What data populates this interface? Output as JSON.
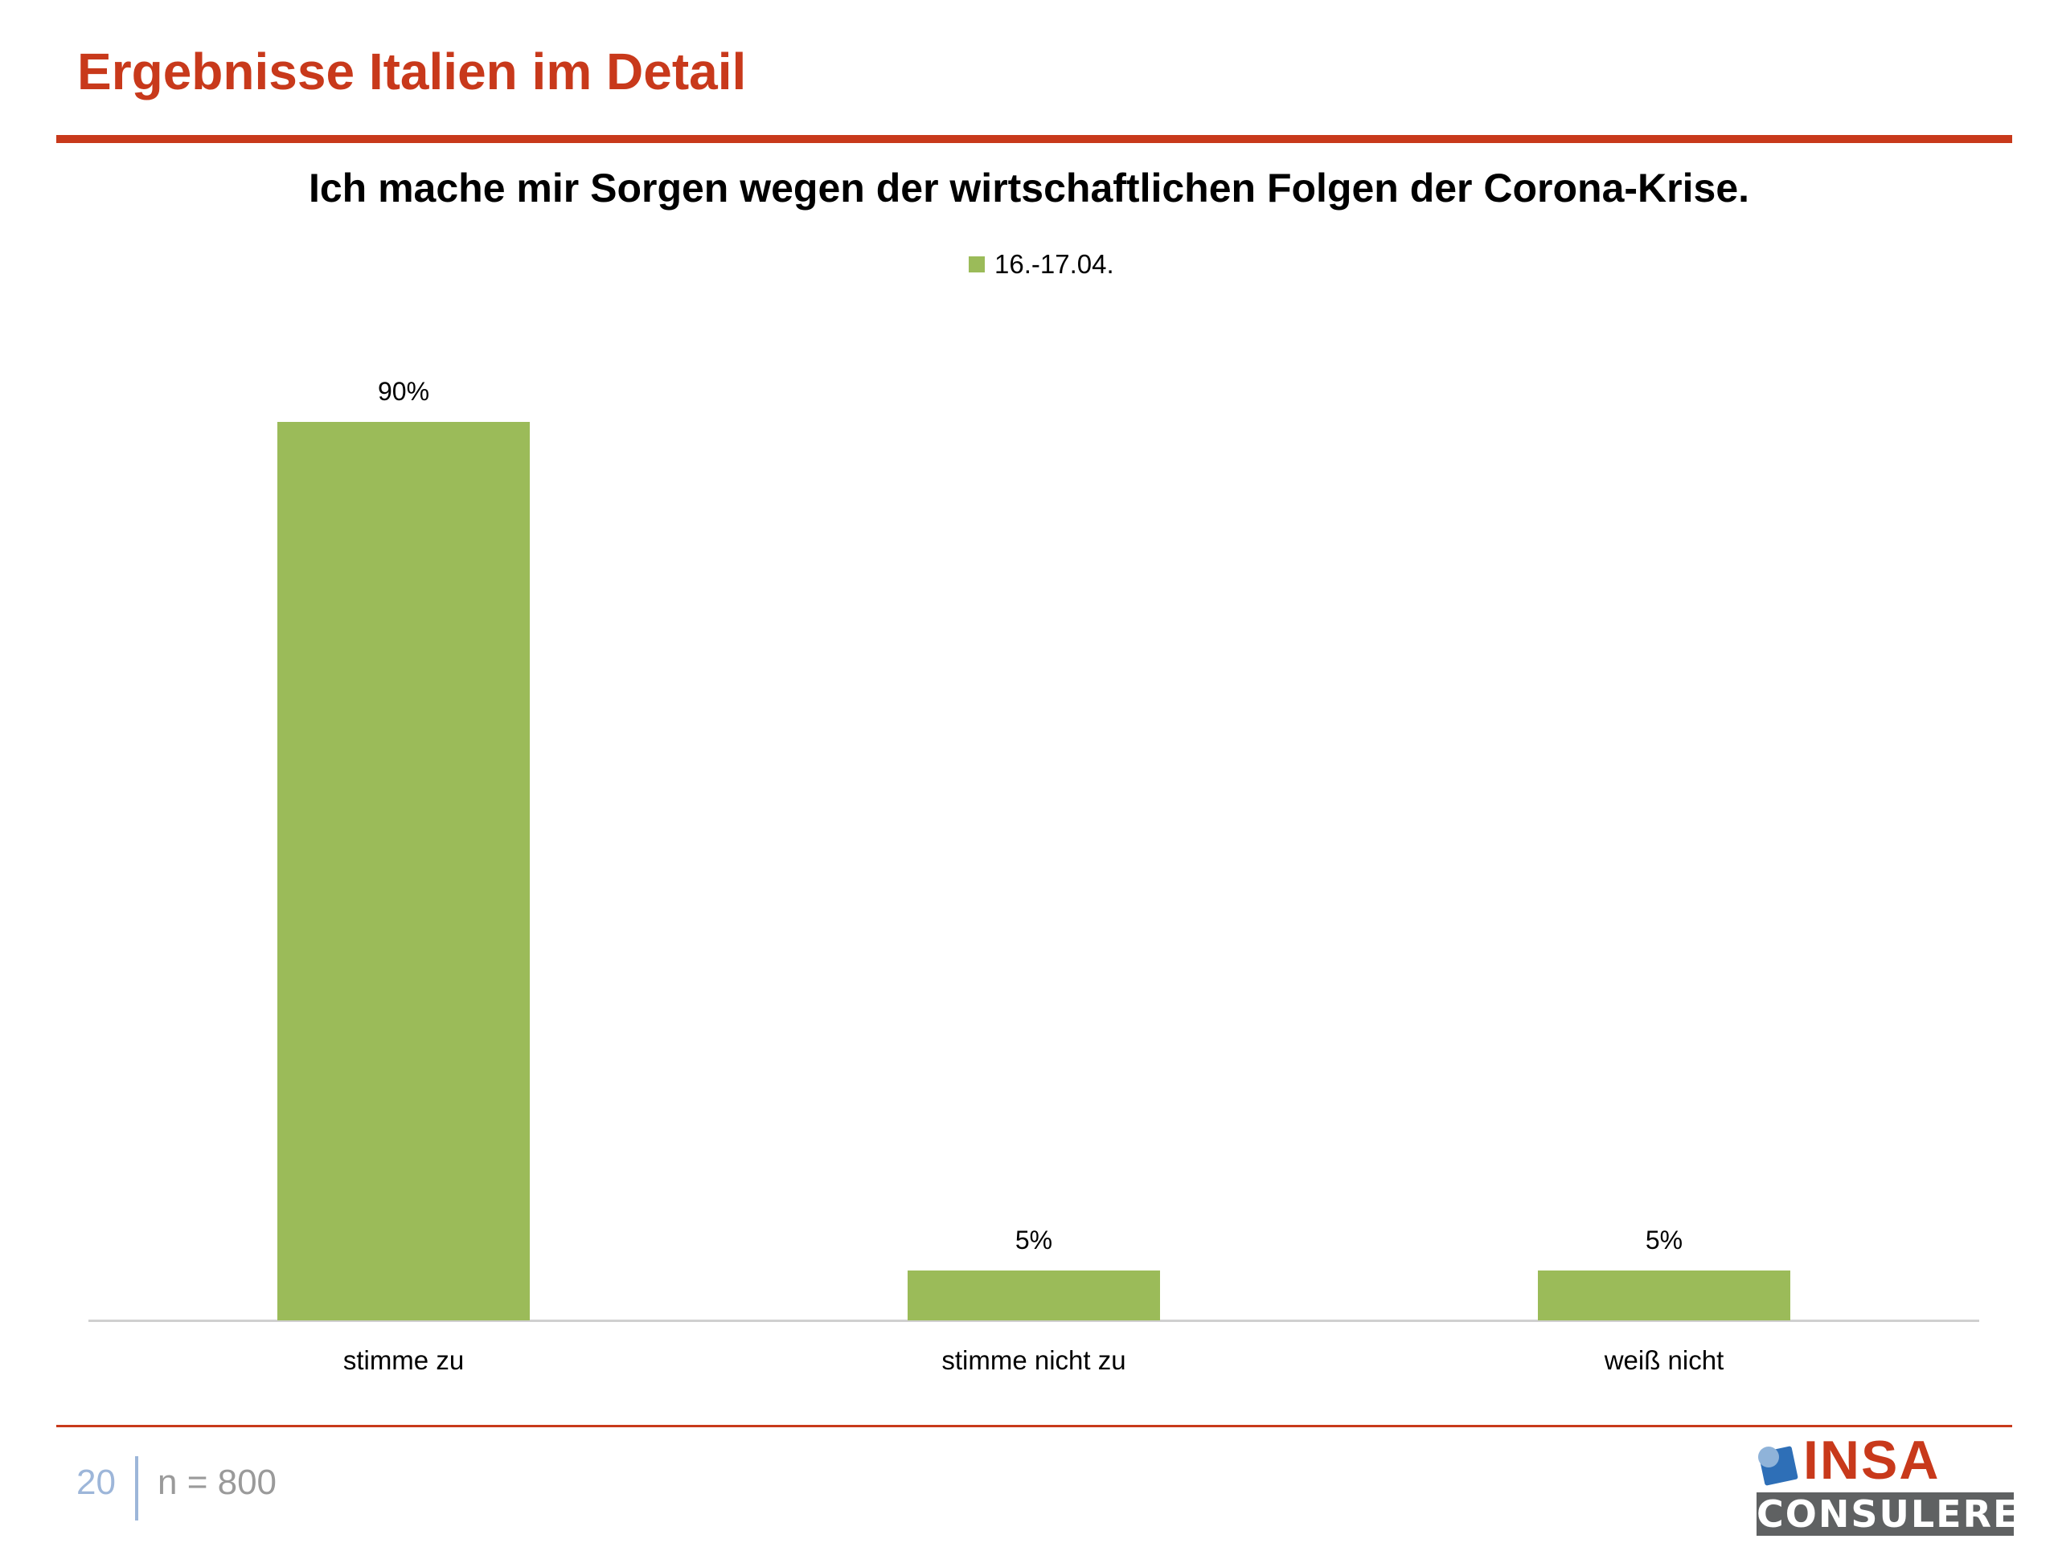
{
  "slide": {
    "title": "Ergebnisse Italien im Detail",
    "page_number": "20",
    "sample_note": "n = 800"
  },
  "logo": {
    "top_text": "INSA",
    "bottom_text": "CONSULERE"
  },
  "colors": {
    "accent": "#c8391b",
    "bar": "#9bbb59",
    "axis": "#d0d0d0",
    "page_number": "#9db6d9",
    "footer_text": "#9a9a9a"
  },
  "chart_data": {
    "type": "bar",
    "title": "Ich mache mir Sorgen wegen der wirtschaftlichen Folgen der Corona-Krise.",
    "categories": [
      "stimme zu",
      "stimme nicht zu",
      "weiß nicht"
    ],
    "series": [
      {
        "name": "16.-17.04.",
        "values": [
          90,
          5,
          5
        ],
        "labels": [
          "90%",
          "5%",
          "5%"
        ]
      }
    ],
    "xlabel": "",
    "ylabel": "",
    "ylim": [
      0,
      90
    ],
    "grid": false,
    "legend": "top-center"
  }
}
